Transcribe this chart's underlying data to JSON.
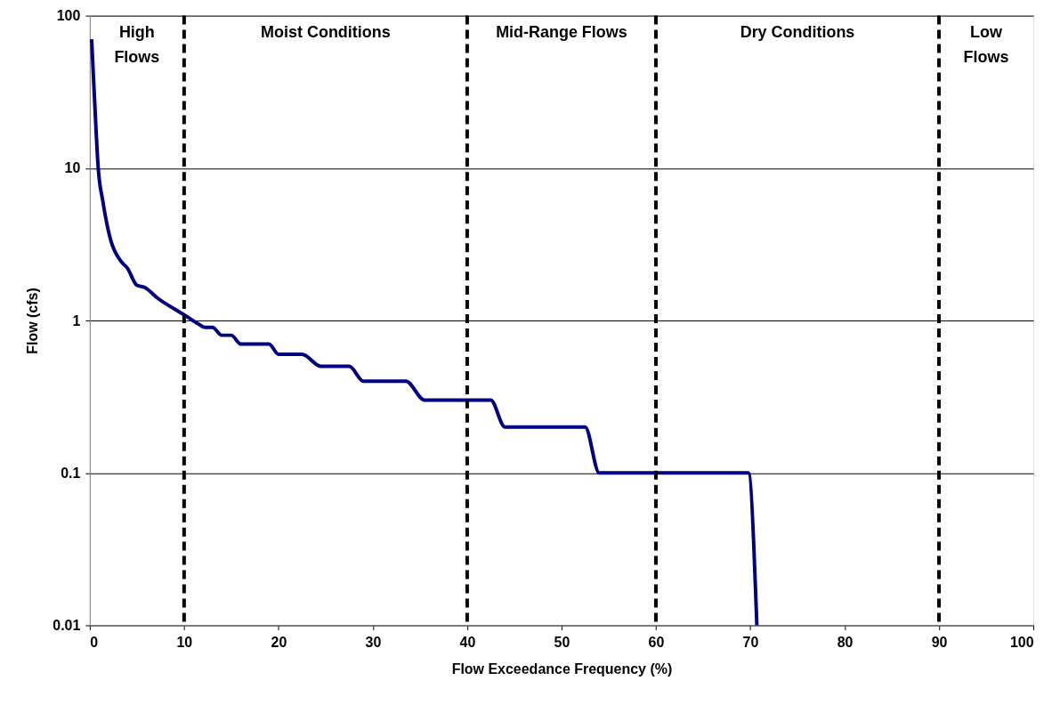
{
  "chart_data": {
    "type": "line",
    "xlabel": "Flow Exceedance Frequency (%)",
    "ylabel": "Flow (cfs)",
    "x": [
      0.2,
      0.5,
      0.9,
      1.4,
      2.2,
      3.3,
      4,
      5,
      5.8,
      7.2,
      10,
      11.5,
      12.2,
      13,
      14,
      15,
      16,
      18.5,
      19,
      20,
      22.5,
      24.5,
      27.5,
      29,
      33.5,
      35.5,
      42.5,
      44,
      52.5,
      54,
      69.8,
      70.7
    ],
    "series": [
      {
        "color": "#000080",
        "values": [
          70,
          29,
          10,
          6,
          3.4,
          2.45,
          2.2,
          1.7,
          1.65,
          1.4,
          1.09,
          0.95,
          0.9,
          0.9,
          0.8,
          0.8,
          0.7,
          0.7,
          0.7,
          0.6,
          0.6,
          0.5,
          0.5,
          0.4,
          0.4,
          0.3,
          0.3,
          0.2,
          0.2,
          0.1,
          0.1,
          0.01
        ]
      }
    ],
    "xlim": [
      0,
      100
    ],
    "xticks": [
      0,
      10,
      20,
      30,
      40,
      50,
      60,
      70,
      80,
      90,
      100
    ],
    "ylim": [
      0.01,
      100
    ],
    "yticks": [
      0.01,
      0.1,
      1,
      10,
      100
    ],
    "log": "y",
    "grid": "y",
    "legend": false,
    "marker": "none",
    "line_style": "solid",
    "ref_lines": [
      {
        "axis": "x",
        "value": 10,
        "line_style": "dashed",
        "color": "#000000"
      },
      {
        "axis": "x",
        "value": 40,
        "line_style": "dashed",
        "color": "#000000"
      },
      {
        "axis": "x",
        "value": 60,
        "line_style": "dashed",
        "color": "#000000"
      },
      {
        "axis": "x",
        "value": 90,
        "line_style": "dashed",
        "color": "#000000"
      }
    ],
    "annotations": [
      "High\nFlows",
      "Moist Conditions",
      "Mid-Range Flows",
      "Dry Conditions",
      "Low\nFlows"
    ]
  }
}
